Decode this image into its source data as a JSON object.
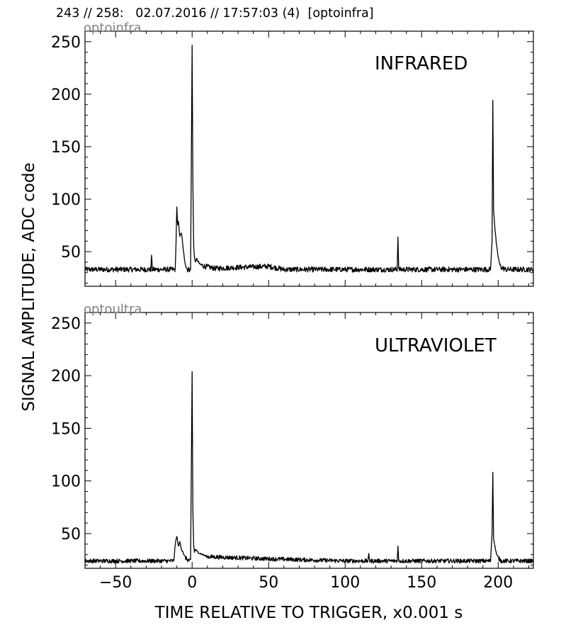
{
  "header": {
    "text": "243 // 258:   02.07.2016 // 17:57:03 (4)  [optoinfra]"
  },
  "figure": {
    "ylabel": "SIGNAL AMPLITUDE,  ADC code",
    "xlabel": "TIME RELATIVE TO TRIGGER,   x0.001 s"
  },
  "chart_data": [
    {
      "type": "line",
      "panel_label": "optoinfra",
      "title": "INFRARED",
      "xlabel": "TIME RELATIVE TO TRIGGER,   x0.001 s",
      "ylabel": "SIGNAL AMPLITUDE,  ADC code",
      "xlim": [
        -70,
        223
      ],
      "ylim": [
        17,
        260
      ],
      "xticks": [
        -50,
        0,
        50,
        100,
        150,
        200
      ],
      "yticks": [
        50,
        100,
        150,
        200,
        250
      ],
      "grid": false,
      "line_color": "#000000",
      "baseline": 33,
      "noise": 2.5,
      "x": [
        -70,
        -27,
        -26.5,
        -26,
        -11,
        -10.5,
        -10,
        -9.5,
        -9,
        -8,
        -7,
        -6,
        -5,
        -4,
        -3,
        -2,
        -1,
        0,
        0.5,
        1,
        1.5,
        2,
        3,
        5,
        8,
        15,
        30,
        50,
        60,
        100,
        134,
        134.5,
        135,
        136,
        180,
        195,
        196,
        196.5,
        197,
        198,
        199,
        200,
        201,
        202,
        205,
        222
      ],
      "y": [
        33,
        33,
        47,
        33,
        33,
        60,
        93,
        75,
        79,
        65,
        68,
        55,
        42,
        36,
        33,
        33,
        33,
        246,
        115,
        57,
        45,
        40,
        43,
        38,
        36,
        34,
        35,
        36,
        33,
        33,
        33,
        64,
        33,
        33,
        33,
        33,
        60,
        194,
        90,
        70,
        55,
        45,
        38,
        35,
        33,
        33
      ]
    },
    {
      "type": "line",
      "panel_label": "optoultra",
      "title": "ULTRAVIOLET",
      "xlabel": "TIME RELATIVE TO TRIGGER,   x0.001 s",
      "ylabel": "SIGNAL AMPLITUDE,  ADC code",
      "xlim": [
        -70,
        223
      ],
      "ylim": [
        17,
        260
      ],
      "xticks": [
        -50,
        0,
        50,
        100,
        150,
        200
      ],
      "yticks": [
        50,
        100,
        150,
        200,
        250
      ],
      "grid": false,
      "line_color": "#000000",
      "baseline": 24,
      "noise": 2.0,
      "x": [
        -70,
        -12,
        -11,
        -10,
        -9,
        -8,
        -7,
        -6,
        -5,
        -3,
        -1,
        0,
        0.5,
        1,
        1.5,
        2,
        4,
        10,
        30,
        50,
        100,
        115,
        115.5,
        116,
        134,
        134.5,
        135,
        195,
        196,
        196.5,
        197,
        198,
        199,
        200,
        202,
        222
      ],
      "y": [
        24,
        24,
        40,
        48,
        38,
        42,
        35,
        33,
        28,
        25,
        24,
        204,
        70,
        40,
        32,
        35,
        32,
        28,
        27,
        26,
        24,
        24,
        31,
        24,
        24,
        38,
        24,
        24,
        50,
        109,
        45,
        37,
        30,
        27,
        24,
        24
      ]
    }
  ]
}
